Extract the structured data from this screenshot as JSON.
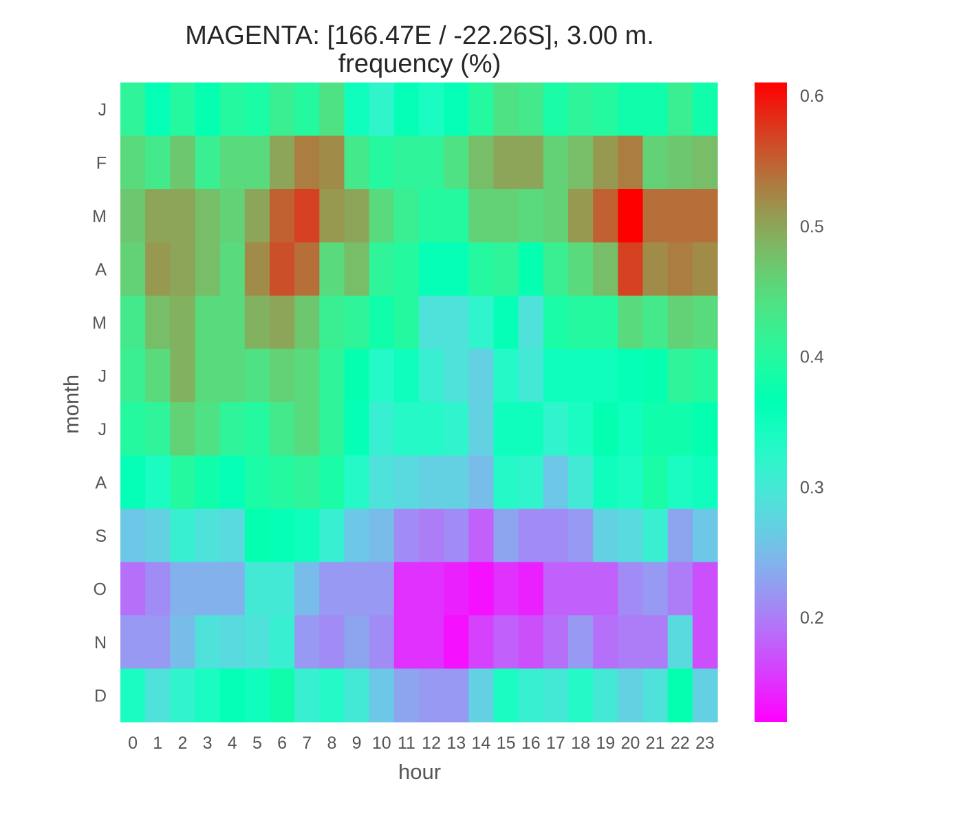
{
  "chart_data": {
    "type": "heatmap",
    "title": "MAGENTA: [166.47E / -22.26S], 3.00 m.",
    "subtitle": "frequency (%)",
    "xlabel": "hour",
    "ylabel": "month",
    "x_categories": [
      "0",
      "1",
      "2",
      "3",
      "4",
      "5",
      "6",
      "7",
      "8",
      "9",
      "10",
      "11",
      "12",
      "13",
      "14",
      "15",
      "16",
      "17",
      "18",
      "19",
      "20",
      "21",
      "22",
      "23"
    ],
    "y_categories": [
      "J",
      "F",
      "M",
      "A",
      "M",
      "J",
      "J",
      "A",
      "S",
      "O",
      "N",
      "D"
    ],
    "colorbar": {
      "colormap": "rainbow",
      "vmin": 0.12,
      "vmax": 0.61,
      "ticks": [
        "0.2",
        "0.3",
        "0.4",
        "0.5",
        "0.6"
      ]
    },
    "values": [
      [
        0.41,
        0.36,
        0.4,
        0.37,
        0.4,
        0.39,
        0.42,
        0.4,
        0.44,
        0.35,
        0.32,
        0.36,
        0.34,
        0.36,
        0.4,
        0.44,
        0.43,
        0.39,
        0.41,
        0.4,
        0.38,
        0.38,
        0.42,
        0.38
      ],
      [
        0.45,
        0.43,
        0.47,
        0.42,
        0.45,
        0.45,
        0.5,
        0.53,
        0.52,
        0.43,
        0.4,
        0.41,
        0.41,
        0.44,
        0.48,
        0.5,
        0.5,
        0.46,
        0.48,
        0.51,
        0.53,
        0.46,
        0.47,
        0.48
      ],
      [
        0.47,
        0.5,
        0.5,
        0.48,
        0.46,
        0.5,
        0.55,
        0.57,
        0.51,
        0.5,
        0.45,
        0.42,
        0.4,
        0.4,
        0.46,
        0.46,
        0.45,
        0.46,
        0.51,
        0.55,
        0.61,
        0.54,
        0.54,
        0.54
      ],
      [
        0.46,
        0.51,
        0.5,
        0.48,
        0.45,
        0.52,
        0.56,
        0.54,
        0.45,
        0.48,
        0.41,
        0.4,
        0.36,
        0.36,
        0.4,
        0.41,
        0.37,
        0.42,
        0.45,
        0.48,
        0.57,
        0.52,
        0.53,
        0.52
      ],
      [
        0.43,
        0.48,
        0.49,
        0.45,
        0.45,
        0.49,
        0.5,
        0.47,
        0.42,
        0.41,
        0.38,
        0.4,
        0.29,
        0.29,
        0.32,
        0.36,
        0.29,
        0.39,
        0.4,
        0.4,
        0.45,
        0.43,
        0.46,
        0.45
      ],
      [
        0.42,
        0.45,
        0.49,
        0.45,
        0.45,
        0.44,
        0.46,
        0.45,
        0.41,
        0.37,
        0.33,
        0.35,
        0.31,
        0.29,
        0.27,
        0.33,
        0.3,
        0.35,
        0.35,
        0.35,
        0.36,
        0.37,
        0.41,
        0.4
      ],
      [
        0.4,
        0.41,
        0.46,
        0.44,
        0.41,
        0.4,
        0.43,
        0.45,
        0.41,
        0.36,
        0.31,
        0.33,
        0.33,
        0.32,
        0.27,
        0.35,
        0.35,
        0.32,
        0.34,
        0.37,
        0.35,
        0.38,
        0.38,
        0.37
      ],
      [
        0.36,
        0.34,
        0.4,
        0.38,
        0.36,
        0.39,
        0.4,
        0.41,
        0.39,
        0.33,
        0.29,
        0.28,
        0.27,
        0.27,
        0.25,
        0.33,
        0.32,
        0.26,
        0.3,
        0.35,
        0.34,
        0.39,
        0.34,
        0.35
      ],
      [
        0.26,
        0.27,
        0.31,
        0.29,
        0.28,
        0.37,
        0.36,
        0.35,
        0.31,
        0.26,
        0.25,
        0.21,
        0.2,
        0.21,
        0.18,
        0.23,
        0.21,
        0.21,
        0.22,
        0.27,
        0.28,
        0.31,
        0.23,
        0.26
      ],
      [
        0.19,
        0.21,
        0.24,
        0.24,
        0.24,
        0.3,
        0.3,
        0.25,
        0.22,
        0.22,
        0.22,
        0.15,
        0.15,
        0.14,
        0.13,
        0.15,
        0.14,
        0.18,
        0.18,
        0.18,
        0.21,
        0.22,
        0.2,
        0.17
      ],
      [
        0.22,
        0.22,
        0.25,
        0.29,
        0.28,
        0.29,
        0.31,
        0.22,
        0.21,
        0.23,
        0.21,
        0.15,
        0.15,
        0.13,
        0.16,
        0.18,
        0.17,
        0.19,
        0.22,
        0.19,
        0.2,
        0.2,
        0.28,
        0.17
      ],
      [
        0.34,
        0.29,
        0.32,
        0.34,
        0.36,
        0.35,
        0.38,
        0.31,
        0.33,
        0.3,
        0.26,
        0.23,
        0.22,
        0.22,
        0.27,
        0.34,
        0.31,
        0.3,
        0.33,
        0.3,
        0.27,
        0.29,
        0.37,
        0.27
      ]
    ]
  }
}
